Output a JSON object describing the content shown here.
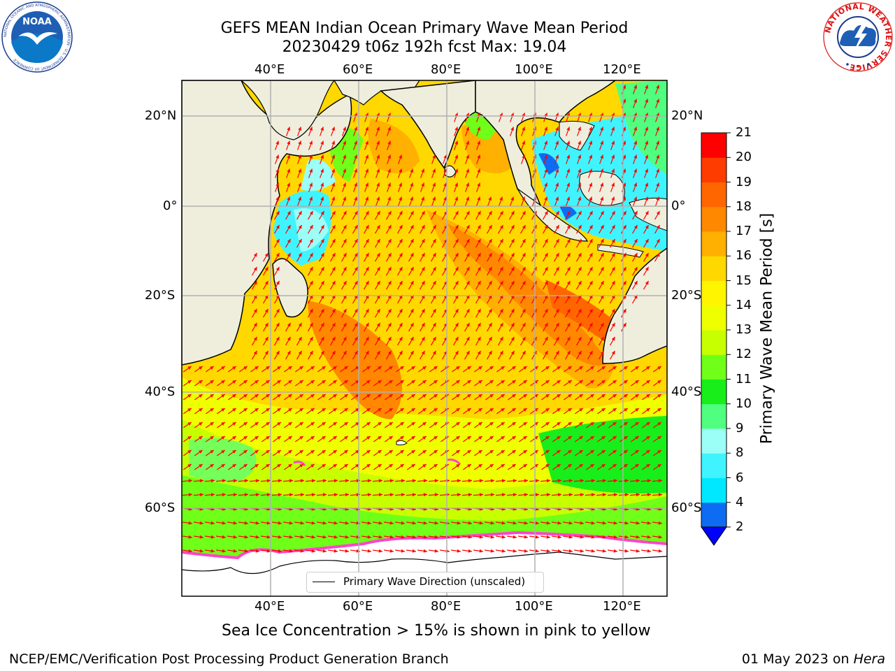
{
  "header": {
    "title": "GEFS MEAN Indian Ocean Primary Wave Mean Period",
    "subtitle": "20230429 t06z 192h fcst   Max: 19.04"
  },
  "map": {
    "lon_labels": [
      "40°E",
      "60°E",
      "80°E",
      "100°E",
      "120°E"
    ],
    "lat_labels": [
      "20°N",
      "0°",
      "20°S",
      "40°S",
      "60°S"
    ],
    "legend_label": "Primary Wave Direction (unscaled)",
    "colors": {
      "land": "#efeedd",
      "sea_ice_area": "#ffffff",
      "sea_ice_edge": "#ff44cc",
      "arrow": "#ff0000",
      "grid": "#b0b0b0"
    }
  },
  "colorbar": {
    "label": "Primary Wave Mean Period [s]",
    "levels": [
      "2",
      "4",
      "6",
      "8",
      "9",
      "10",
      "11",
      "12",
      "13",
      "14",
      "15",
      "16",
      "17",
      "18",
      "19",
      "20",
      "21"
    ],
    "colors": [
      "#0d6cf2",
      "#00e8ff",
      "#40f4ff",
      "#9bfff8",
      "#50ff80",
      "#18ee1a",
      "#70ff18",
      "#c8ff00",
      "#f0ff00",
      "#fff500",
      "#ffd800",
      "#ffb000",
      "#ff8800",
      "#ff6600",
      "#ff3c00",
      "#ff0000"
    ],
    "under_color": "#0000ff"
  },
  "caption": "Sea Ice Concentration > 15% is shown in pink to yellow",
  "footer": {
    "left": "NCEP/EMC/Verification Post Processing Product Generation Branch",
    "date": "01 May 2023 on ",
    "host": "Hera"
  },
  "logos": {
    "noaa": "NOAA",
    "noaa_ring": "NATIONAL OCEANIC AND ATMOSPHERIC ADMINISTRATION · U.S. DEPARTMENT OF COMMERCE",
    "nws_ring": "NATIONAL WEATHER SERVICE"
  }
}
